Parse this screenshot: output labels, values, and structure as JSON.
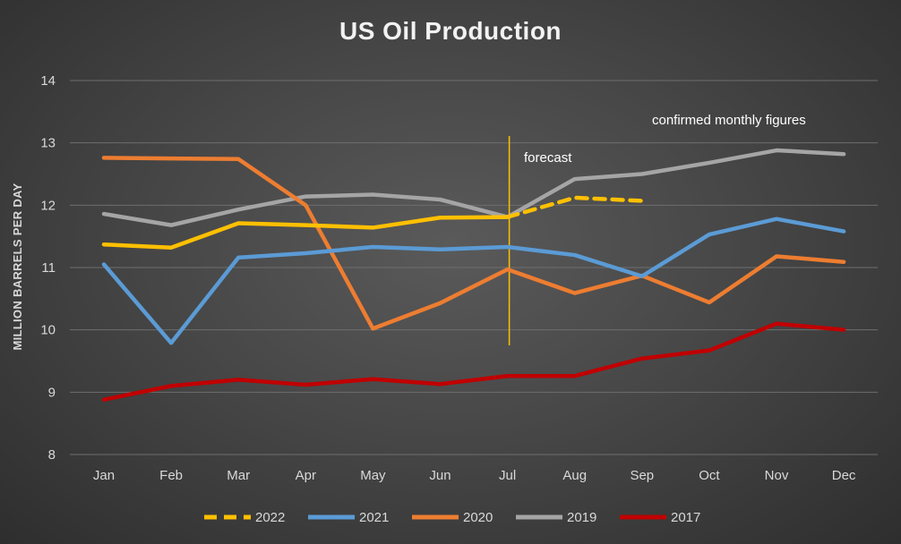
{
  "chart_data": {
    "type": "line",
    "title": "US Oil Production",
    "ylabel": "MILLION BARRELS PER DAY",
    "xlabel": "",
    "categories": [
      "Jan",
      "Feb",
      "Mar",
      "Apr",
      "May",
      "Jun",
      "Jul",
      "Aug",
      "Sep",
      "Oct",
      "Nov",
      "Dec"
    ],
    "ylim": [
      8,
      14
    ],
    "yticks": [
      8,
      9,
      10,
      11,
      12,
      13,
      14
    ],
    "grid": true,
    "legend_position": "bottom",
    "series": [
      {
        "name": "2022",
        "color": "#ffc000",
        "dashed_from_index": 6,
        "values": [
          11.37,
          11.32,
          11.71,
          11.68,
          11.64,
          11.8,
          11.81,
          12.12,
          12.07,
          null,
          null,
          null
        ]
      },
      {
        "name": "2021",
        "color": "#5b9bd5",
        "values": [
          11.05,
          9.79,
          11.16,
          11.23,
          11.33,
          11.29,
          11.33,
          11.2,
          10.86,
          11.53,
          11.78,
          11.58
        ]
      },
      {
        "name": "2020",
        "color": "#ed7d31",
        "values": [
          12.76,
          12.75,
          12.74,
          12.0,
          10.02,
          10.43,
          10.97,
          10.59,
          10.87,
          10.44,
          11.18,
          11.09
        ]
      },
      {
        "name": "2019",
        "color": "#a5a5a5",
        "values": [
          11.86,
          11.68,
          11.93,
          12.14,
          12.17,
          12.09,
          11.81,
          12.42,
          12.5,
          12.68,
          12.88,
          12.82
        ]
      },
      {
        "name": "2017",
        "color": "#c00000",
        "values": [
          8.88,
          9.1,
          9.2,
          9.12,
          9.21,
          9.13,
          9.26,
          9.26,
          9.54,
          9.67,
          10.1,
          10.0
        ]
      }
    ],
    "forecast_line_at": "Jul",
    "annotations": {
      "forecast": "forecast",
      "confirmed": "confirmed monthly figures"
    }
  }
}
